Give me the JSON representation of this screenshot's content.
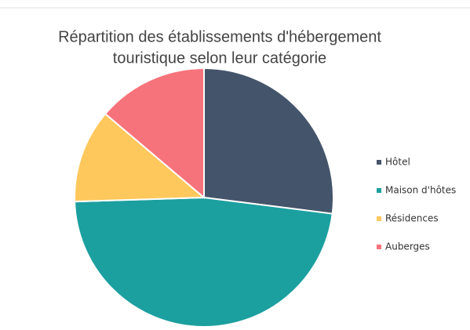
{
  "chart_data": {
    "type": "pie",
    "title": [
      "Répartition des établissements d'hébergement",
      "touristique selon leur catégorie"
    ],
    "categories": [
      "Hôtel",
      "Maison d'hôtes",
      "Résidences",
      "Auberges"
    ],
    "values": [
      27,
      47.5,
      11.7,
      13.8
    ],
    "colors": [
      "#44546a",
      "#1c9f9f",
      "#ffc85c",
      "#f7737b"
    ],
    "legend": "right"
  }
}
